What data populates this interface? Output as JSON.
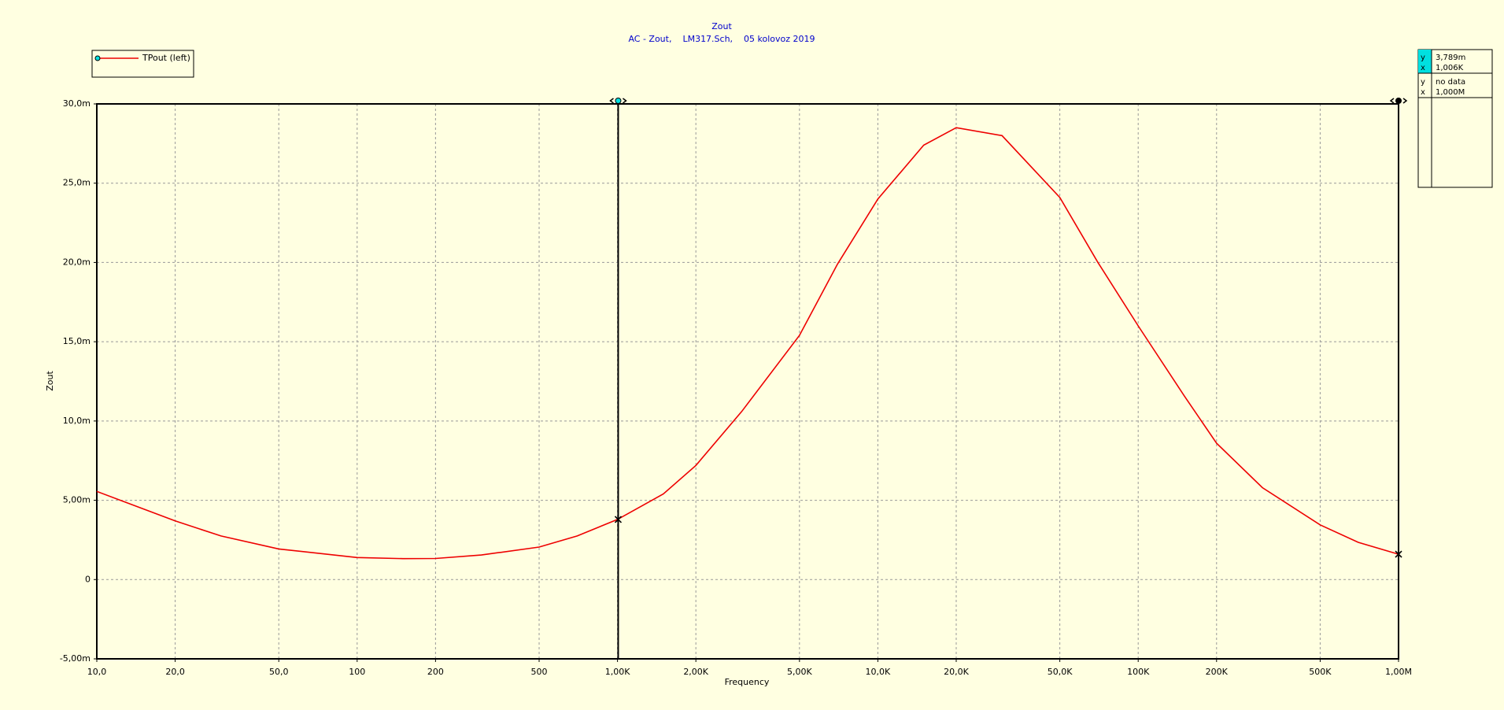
{
  "chart_data": {
    "type": "line",
    "title": "Zout",
    "subtitle": "AC - Zout,    LM317.Sch,    05 kolovoz 2019",
    "x_label": "Frequency",
    "y_label": "Zout",
    "log_x": true,
    "grid": true,
    "legend": "top-left",
    "x": [
      10,
      20,
      30,
      50,
      100,
      150,
      200,
      300,
      500,
      700,
      1000,
      1500,
      2000,
      3000,
      5000,
      7000,
      10000,
      15000,
      20000,
      30000,
      50000,
      70000,
      100000,
      150000,
      200000,
      300000,
      500000,
      700000,
      1000000
    ],
    "series": [
      {
        "name": "TPout (left)",
        "color": "#ee0000",
        "values": [
          5.56,
          3.7,
          2.75,
          1.93,
          1.39,
          1.32,
          1.33,
          1.55,
          2.05,
          2.75,
          3.79,
          5.4,
          7.2,
          10.6,
          15.4,
          19.9,
          24.0,
          27.4,
          28.5,
          28.0,
          24.1,
          20.0,
          16.0,
          11.6,
          8.6,
          5.8,
          3.45,
          2.35,
          1.6
        ]
      }
    ],
    "xlim": [
      10,
      1000000
    ],
    "ylim": [
      -5,
      30
    ],
    "xticks": [
      {
        "value": 10,
        "label": "10,0"
      },
      {
        "value": 20,
        "label": "20,0"
      },
      {
        "value": 50,
        "label": "50,0"
      },
      100,
      200,
      500,
      {
        "value": 1000,
        "label": "1,00K"
      },
      {
        "value": 2000,
        "label": "2,00K"
      },
      {
        "value": 5000,
        "label": "5,00K"
      },
      {
        "value": 10000,
        "label": "10,0K"
      },
      {
        "value": 20000,
        "label": "20,0K"
      },
      {
        "value": 50000,
        "label": "50,0K"
      },
      {
        "value": 100000,
        "label": "100K"
      },
      {
        "value": 200000,
        "label": "200K"
      },
      {
        "value": 500000,
        "label": "500K"
      },
      {
        "value": 1000000,
        "label": "1,00M"
      }
    ],
    "yticks": [
      {
        "value": -5,
        "label": "-5,00m"
      },
      0,
      {
        "value": 5,
        "label": "5,00m"
      },
      {
        "value": 10,
        "label": "10,0m"
      },
      {
        "value": 15,
        "label": "15,0m"
      },
      {
        "value": 20,
        "label": "20,0m"
      },
      {
        "value": 25,
        "label": "25,0m"
      },
      {
        "value": 30,
        "label": "30,0m"
      }
    ],
    "readout_keys": [
      "y",
      "x"
    ],
    "cursors": [
      {
        "x": {
          "value": 1006,
          "label": "1,006K"
        },
        "y": {
          "value": 3.789,
          "label": "3,789m"
        }
      },
      {
        "x": {
          "value": 1000000,
          "label": "1,000M"
        },
        "y_text": "no data"
      }
    ]
  }
}
